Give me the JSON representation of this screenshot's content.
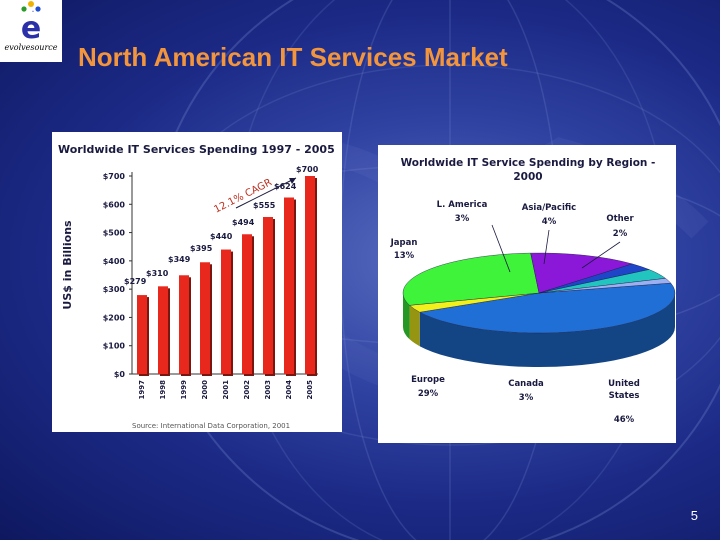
{
  "logo": {
    "text": "evolvesource"
  },
  "slide": {
    "title": "North American IT Services Market",
    "page_number": "5"
  },
  "colors": {
    "title": "#f2953c",
    "bar": "#e8281d",
    "background": "#243494"
  },
  "chart_data": [
    {
      "type": "bar",
      "title": "Worldwide IT Services Spending 1997 - 2005",
      "ylabel": "US$ in Billions",
      "categories": [
        "1997",
        "1998",
        "1999",
        "2000",
        "2001",
        "2002",
        "2003",
        "2004",
        "2005"
      ],
      "values": [
        279,
        310,
        349,
        395,
        440,
        494,
        555,
        624,
        700
      ],
      "value_labels": [
        "$279",
        "$310",
        "$349",
        "$395",
        "$440",
        "$494",
        "$555",
        "$624",
        "$700"
      ],
      "yticks": [
        0,
        100,
        200,
        300,
        400,
        500,
        600,
        700
      ],
      "ytick_labels": [
        "$0",
        "$100",
        "$200",
        "$300",
        "$400",
        "$500",
        "$600",
        "$700"
      ],
      "ylim": [
        0,
        700
      ],
      "annotation": "12.1% CAGR",
      "source": "Source: International Data Corporation, 2001",
      "color": "#e8281d"
    },
    {
      "type": "pie",
      "title": "Worldwide IT Service Spending by Region - 2000",
      "labels": [
        "United States",
        "Canada",
        "Europe",
        "Japan",
        "L. America",
        "Asia/Pacific",
        "Other"
      ],
      "values": [
        46,
        3,
        29,
        13,
        3,
        4,
        2
      ],
      "value_labels": [
        "46%",
        "3%",
        "29%",
        "13%",
        "3%",
        "4%",
        "2%"
      ],
      "colors": [
        "#1f6fd6",
        "#f2f01c",
        "#3ef33a",
        "#8b18d8",
        "#1f45c8",
        "#22c4bf",
        "#9bb0f2"
      ]
    }
  ]
}
